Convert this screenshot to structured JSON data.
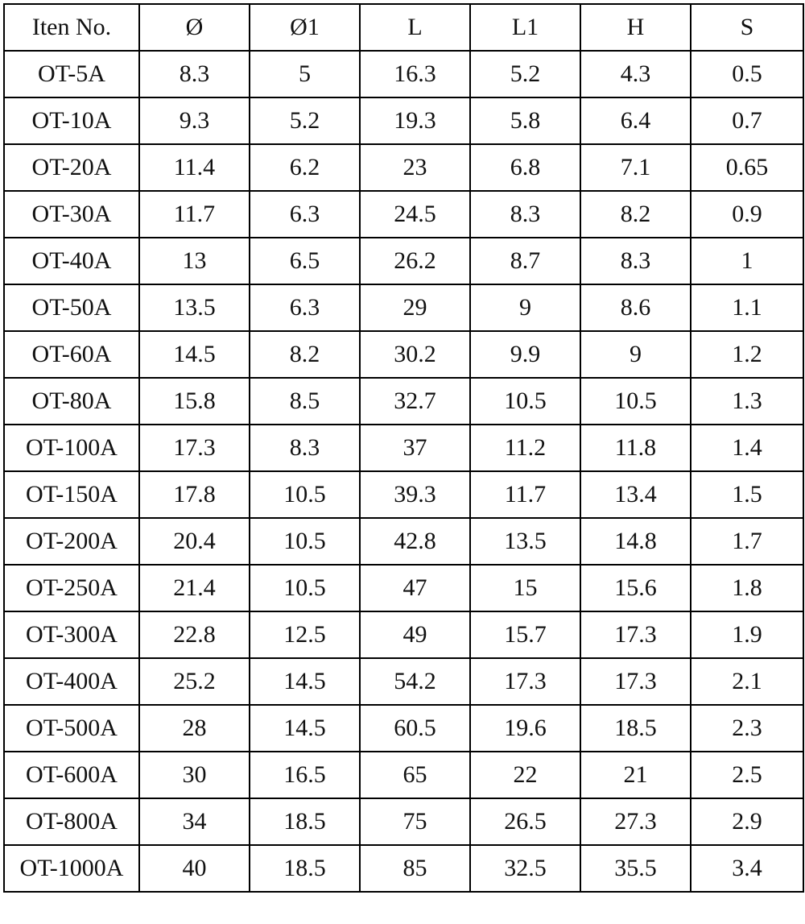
{
  "table": {
    "headers": [
      "Iten No.",
      "Ø",
      "Ø1",
      "L",
      "L1",
      "H",
      "S"
    ],
    "rows": [
      [
        "OT-5A",
        "8.3",
        "5",
        "16.3",
        "5.2",
        "4.3",
        "0.5"
      ],
      [
        "OT-10A",
        "9.3",
        "5.2",
        "19.3",
        "5.8",
        "6.4",
        "0.7"
      ],
      [
        "OT-20A",
        "11.4",
        "6.2",
        "23",
        "6.8",
        "7.1",
        "0.65"
      ],
      [
        "OT-30A",
        "11.7",
        "6.3",
        "24.5",
        "8.3",
        "8.2",
        "0.9"
      ],
      [
        "OT-40A",
        "13",
        "6.5",
        "26.2",
        "8.7",
        "8.3",
        "1"
      ],
      [
        "OT-50A",
        "13.5",
        "6.3",
        "29",
        "9",
        "8.6",
        "1.1"
      ],
      [
        "OT-60A",
        "14.5",
        "8.2",
        "30.2",
        "9.9",
        "9",
        "1.2"
      ],
      [
        "OT-80A",
        "15.8",
        "8.5",
        "32.7",
        "10.5",
        "10.5",
        "1.3"
      ],
      [
        "OT-100A",
        "17.3",
        "8.3",
        "37",
        "11.2",
        "11.8",
        "1.4"
      ],
      [
        "OT-150A",
        "17.8",
        "10.5",
        "39.3",
        "11.7",
        "13.4",
        "1.5"
      ],
      [
        "OT-200A",
        "20.4",
        "10.5",
        "42.8",
        "13.5",
        "14.8",
        "1.7"
      ],
      [
        "OT-250A",
        "21.4",
        "10.5",
        "47",
        "15",
        "15.6",
        "1.8"
      ],
      [
        "OT-300A",
        "22.8",
        "12.5",
        "49",
        "15.7",
        "17.3",
        "1.9"
      ],
      [
        "OT-400A",
        "25.2",
        "14.5",
        "54.2",
        "17.3",
        "17.3",
        "2.1"
      ],
      [
        "OT-500A",
        "28",
        "14.5",
        "60.5",
        "19.6",
        "18.5",
        "2.3"
      ],
      [
        "OT-600A",
        "30",
        "16.5",
        "65",
        "22",
        "21",
        "2.5"
      ],
      [
        "OT-800A",
        "34",
        "18.5",
        "75",
        "26.5",
        "27.3",
        "2.9"
      ],
      [
        "OT-1000A",
        "40",
        "18.5",
        "85",
        "32.5",
        "35.5",
        "3.4"
      ]
    ]
  }
}
